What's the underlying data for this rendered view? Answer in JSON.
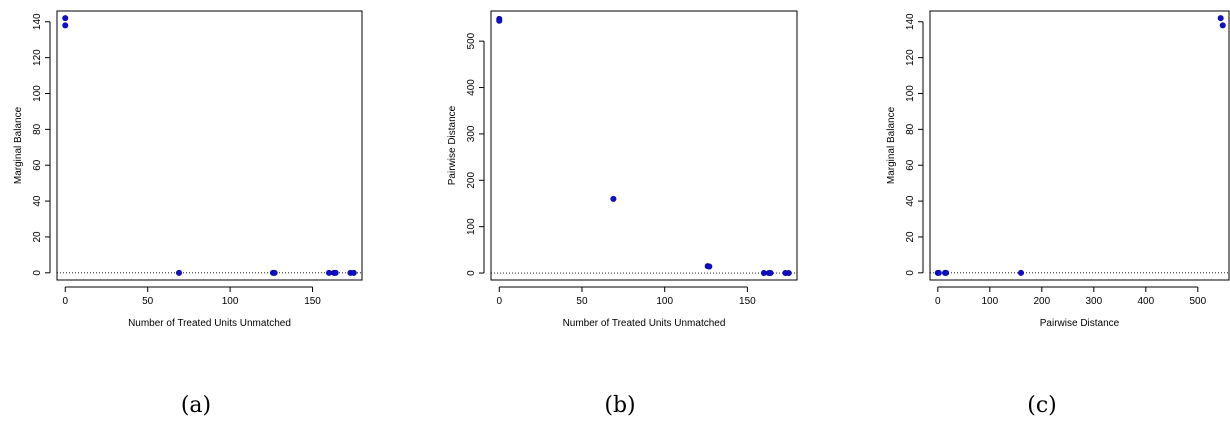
{
  "chart_data": [
    {
      "type": "scatter",
      "xlabel": "Number of Treated Units Unmatched",
      "ylabel": "Marginal Balance",
      "xlim": [
        -5,
        180
      ],
      "ylim": [
        -4,
        146
      ],
      "xticks": [
        0,
        50,
        100,
        150
      ],
      "yticks": [
        0,
        20,
        40,
        60,
        80,
        100,
        120,
        140
      ],
      "hline": 0,
      "caption": "(a)",
      "points": [
        {
          "x": 0,
          "y": 142
        },
        {
          "x": 0,
          "y": 138
        },
        {
          "x": 69,
          "y": 0
        },
        {
          "x": 126,
          "y": 0
        },
        {
          "x": 127,
          "y": 0
        },
        {
          "x": 160,
          "y": 0
        },
        {
          "x": 163,
          "y": 0
        },
        {
          "x": 164,
          "y": 0
        },
        {
          "x": 173,
          "y": 0
        },
        {
          "x": 175,
          "y": 0
        }
      ]
    },
    {
      "type": "scatter",
      "xlabel": "Number of Treated Units Unmatched",
      "ylabel": "Pairwise Distance",
      "xlim": [
        -5,
        180
      ],
      "ylim": [
        -15,
        565
      ],
      "xticks": [
        0,
        50,
        100,
        150
      ],
      "yticks": [
        0,
        100,
        200,
        300,
        400,
        500
      ],
      "hline": 0,
      "caption": "(b)",
      "points": [
        {
          "x": 0,
          "y": 548
        },
        {
          "x": 0,
          "y": 544
        },
        {
          "x": 69,
          "y": 160
        },
        {
          "x": 126,
          "y": 15
        },
        {
          "x": 127,
          "y": 14
        },
        {
          "x": 160,
          "y": 0
        },
        {
          "x": 163,
          "y": 0
        },
        {
          "x": 164,
          "y": 0
        },
        {
          "x": 173,
          "y": 0
        },
        {
          "x": 175,
          "y": 0
        }
      ]
    },
    {
      "type": "scatter",
      "xlabel": "Pairwise Distance",
      "ylabel": "Marginal Balance",
      "xlim": [
        -15,
        560
      ],
      "ylim": [
        -4,
        146
      ],
      "xticks": [
        0,
        100,
        200,
        300,
        400,
        500
      ],
      "yticks": [
        0,
        20,
        40,
        60,
        80,
        100,
        120,
        140
      ],
      "hline": 0,
      "caption": "(c)",
      "points": [
        {
          "x": 0,
          "y": 0
        },
        {
          "x": 2,
          "y": 0
        },
        {
          "x": 14,
          "y": 0
        },
        {
          "x": 16,
          "y": 0
        },
        {
          "x": 160,
          "y": 0
        },
        {
          "x": 544,
          "y": 142
        },
        {
          "x": 548,
          "y": 138
        }
      ]
    }
  ]
}
